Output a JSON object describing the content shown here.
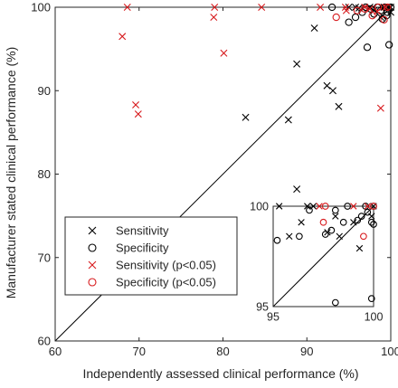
{
  "chart_data": {
    "type": "scatter",
    "xlabel": "Independently assessed clinical performance (%)",
    "ylabel": "Manufacturer stated clinical performance (%)",
    "xlim": [
      60,
      100
    ],
    "ylim": [
      60,
      100
    ],
    "xticks": [
      "60",
      "70",
      "80",
      "90",
      "100"
    ],
    "yticks": [
      "60",
      "70",
      "80",
      "90",
      "100"
    ],
    "grid": false,
    "legend_position": "lower-left",
    "identity_line": true,
    "series": [
      {
        "name": "Sensitivity",
        "marker": "x",
        "color": "#000000",
        "points": [
          [
            82.7,
            86.8
          ],
          [
            87.8,
            86.5
          ],
          [
            88.8,
            78.2
          ],
          [
            88.8,
            93.2
          ],
          [
            90.9,
            97.5
          ],
          [
            92.4,
            90.6
          ],
          [
            93.1,
            90.0
          ],
          [
            93.8,
            88.1
          ],
          [
            95.0,
            100.0
          ],
          [
            95.8,
            100.0
          ],
          [
            96.2,
            99.9
          ],
          [
            97.5,
            100.0
          ],
          [
            98.0,
            99.6
          ],
          [
            98.8,
            98.8
          ],
          [
            99.2,
            100.0
          ],
          [
            99.6,
            99.6
          ],
          [
            99.8,
            100.0
          ],
          [
            100.0,
            99.4
          ],
          [
            100.0,
            100.0
          ],
          [
            99.0,
            99.0
          ]
        ]
      },
      {
        "name": "Specificity",
        "marker": "o",
        "color": "#000000",
        "points": [
          [
            93.0,
            100.0
          ],
          [
            95.0,
            98.2
          ],
          [
            95.8,
            98.8
          ],
          [
            96.6,
            99.4
          ],
          [
            97.0,
            100.0
          ],
          [
            97.2,
            95.2
          ],
          [
            98.0,
            99.2
          ],
          [
            98.4,
            100.0
          ],
          [
            98.8,
            99.6
          ],
          [
            99.0,
            98.6
          ],
          [
            99.3,
            100.0
          ],
          [
            99.6,
            99.4
          ],
          [
            99.8,
            95.5
          ],
          [
            100.0,
            100.0
          ],
          [
            99.5,
            99.0
          ],
          [
            97.6,
            99.8
          ]
        ]
      },
      {
        "name": "Sensitivity (p<0.05)",
        "marker": "x",
        "color": "#d7191c",
        "points": [
          [
            68.0,
            96.5
          ],
          [
            68.6,
            100.0
          ],
          [
            69.6,
            88.3
          ],
          [
            69.9,
            87.2
          ],
          [
            78.9,
            98.8
          ],
          [
            79.0,
            100.0
          ],
          [
            80.1,
            94.5
          ],
          [
            84.6,
            100.0
          ],
          [
            91.6,
            100.0
          ],
          [
            94.6,
            100.0
          ],
          [
            94.7,
            99.6
          ],
          [
            96.9,
            100.0
          ],
          [
            97.5,
            99.8
          ],
          [
            98.4,
            99.5
          ],
          [
            98.8,
            87.9
          ],
          [
            99.4,
            100.0
          ]
        ]
      },
      {
        "name": "Specificity (p<0.05)",
        "marker": "o",
        "color": "#d7191c",
        "points": [
          [
            93.5,
            98.8
          ],
          [
            96.0,
            99.6
          ],
          [
            96.9,
            99.8
          ],
          [
            97.8,
            99.0
          ],
          [
            98.5,
            100.0
          ],
          [
            99.2,
            98.5
          ],
          [
            99.6,
            100.0
          ]
        ]
      }
    ],
    "inset": {
      "xlim": [
        95,
        100
      ],
      "ylim": [
        95,
        100
      ],
      "xticks": [
        "95",
        "100"
      ],
      "yticks": [
        "95",
        "100"
      ],
      "series": [
        {
          "name": "Sensitivity",
          "marker": "x",
          "color": "#000000",
          "points": [
            [
              95.3,
              100.0
            ],
            [
              95.8,
              98.5
            ],
            [
              96.4,
              99.2
            ],
            [
              96.7,
              100.0
            ],
            [
              97.0,
              100.0
            ],
            [
              97.7,
              98.7
            ],
            [
              98.1,
              99.5
            ],
            [
              98.3,
              98.5
            ],
            [
              99.0,
              99.2
            ],
            [
              99.3,
              97.9
            ],
            [
              99.9,
              99.5
            ],
            [
              100.0,
              100.0
            ]
          ]
        },
        {
          "name": "Specificity",
          "marker": "o",
          "color": "#000000",
          "points": [
            [
              95.2,
              98.3
            ],
            [
              96.3,
              98.5
            ],
            [
              96.8,
              99.8
            ],
            [
              97.6,
              98.6
            ],
            [
              97.9,
              98.8
            ],
            [
              98.1,
              99.8
            ],
            [
              98.1,
              95.2
            ],
            [
              98.5,
              99.2
            ],
            [
              98.7,
              100.0
            ],
            [
              99.2,
              99.3
            ],
            [
              99.4,
              99.5
            ],
            [
              99.6,
              100.0
            ],
            [
              99.7,
              99.7
            ],
            [
              99.9,
              99.2
            ],
            [
              100.0,
              100.0
            ],
            [
              100.0,
              99.1
            ],
            [
              99.9,
              95.4
            ]
          ]
        },
        {
          "name": "Sensitivity (p<0.05)",
          "marker": "x",
          "color": "#d7191c",
          "points": [
            [
              97.3,
              100.0
            ],
            [
              99.0,
              100.0
            ],
            [
              99.7,
              100.0
            ]
          ]
        },
        {
          "name": "Specificity (p<0.05)",
          "marker": "o",
          "color": "#d7191c",
          "points": [
            [
              97.5,
              99.2
            ],
            [
              97.6,
              100.0
            ],
            [
              99.5,
              98.5
            ],
            [
              100.0,
              100.0
            ]
          ]
        }
      ]
    }
  }
}
